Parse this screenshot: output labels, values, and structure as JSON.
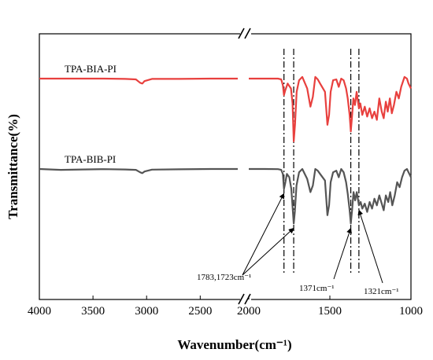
{
  "chart_data": {
    "type": "line",
    "xlabel": "Wavenumber(cm⁻¹)",
    "ylabel": "Transmittance(%)",
    "x_axis": {
      "reversed": true,
      "broken": true,
      "segments": [
        [
          4000,
          2150
        ],
        [
          2000,
          1000
        ]
      ]
    },
    "xticks": [
      {
        "value": 4000,
        "label": "4000"
      },
      {
        "value": 3500,
        "label": "3500"
      },
      {
        "value": 3000,
        "label": "3000"
      },
      {
        "value": 2500,
        "label": "2500"
      },
      {
        "value": 2000,
        "label": "2000"
      },
      {
        "value": 1500,
        "label": "1500"
      },
      {
        "value": 1000,
        "label": "1000"
      }
    ],
    "y_ticks_shown": false,
    "series": [
      {
        "name": "TPA-BIA-PI",
        "color": "#e8403e",
        "points": [
          [
            4000,
            100
          ],
          [
            3800,
            100
          ],
          [
            3600,
            100
          ],
          [
            3400,
            100
          ],
          [
            3200,
            99.8
          ],
          [
            3100,
            99.5
          ],
          [
            3060,
            97.5
          ],
          [
            3040,
            97
          ],
          [
            3020,
            98.5
          ],
          [
            2950,
            99.8
          ],
          [
            2700,
            99.8
          ],
          [
            2400,
            100
          ],
          [
            2150,
            100
          ],
          [
            2000,
            100
          ],
          [
            1900,
            100
          ],
          [
            1820,
            100
          ],
          [
            1800,
            99.5
          ],
          [
            1790,
            96
          ],
          [
            1783,
            90
          ],
          [
            1775,
            93
          ],
          [
            1760,
            97
          ],
          [
            1740,
            94
          ],
          [
            1730,
            85
          ],
          [
            1723,
            62
          ],
          [
            1715,
            72
          ],
          [
            1705,
            92
          ],
          [
            1690,
            99
          ],
          [
            1670,
            101
          ],
          [
            1640,
            94
          ],
          [
            1620,
            83
          ],
          [
            1605,
            89
          ],
          [
            1590,
            101
          ],
          [
            1575,
            99.5
          ],
          [
            1560,
            97
          ],
          [
            1530,
            92
          ],
          [
            1515,
            72
          ],
          [
            1505,
            78
          ],
          [
            1495,
            92
          ],
          [
            1480,
            99
          ],
          [
            1460,
            99.5
          ],
          [
            1445,
            95
          ],
          [
            1430,
            100
          ],
          [
            1415,
            99
          ],
          [
            1400,
            94
          ],
          [
            1390,
            88
          ],
          [
            1378,
            78
          ],
          [
            1371,
            68
          ],
          [
            1365,
            75
          ],
          [
            1355,
            88
          ],
          [
            1345,
            84
          ],
          [
            1335,
            92
          ],
          [
            1321,
            82
          ],
          [
            1312,
            85
          ],
          [
            1300,
            78
          ],
          [
            1285,
            83
          ],
          [
            1270,
            77
          ],
          [
            1255,
            82
          ],
          [
            1240,
            76
          ],
          [
            1225,
            80
          ],
          [
            1210,
            75
          ],
          [
            1195,
            88
          ],
          [
            1180,
            80
          ],
          [
            1168,
            76
          ],
          [
            1155,
            86
          ],
          [
            1143,
            80
          ],
          [
            1130,
            88
          ],
          [
            1118,
            79
          ],
          [
            1105,
            84
          ],
          [
            1090,
            92
          ],
          [
            1075,
            88
          ],
          [
            1060,
            95
          ],
          [
            1040,
            101
          ],
          [
            1025,
            100
          ],
          [
            1015,
            97
          ],
          [
            1005,
            95
          ],
          [
            1000,
            94
          ]
        ]
      },
      {
        "name": "TPA-BIB-PI",
        "color": "#555555",
        "points": [
          [
            4000,
            100
          ],
          [
            3800,
            99.5
          ],
          [
            3600,
            99.7
          ],
          [
            3400,
            99.9
          ],
          [
            3200,
            99.7
          ],
          [
            3100,
            99.5
          ],
          [
            3060,
            98
          ],
          [
            3040,
            97.5
          ],
          [
            3020,
            98.5
          ],
          [
            2950,
            99.6
          ],
          [
            2700,
            99.8
          ],
          [
            2400,
            100
          ],
          [
            2150,
            100
          ],
          [
            2000,
            100
          ],
          [
            1900,
            100
          ],
          [
            1820,
            99.9
          ],
          [
            1800,
            99.5
          ],
          [
            1790,
            97
          ],
          [
            1783,
            88
          ],
          [
            1776,
            91
          ],
          [
            1765,
            97
          ],
          [
            1750,
            95
          ],
          [
            1738,
            88
          ],
          [
            1723,
            67
          ],
          [
            1716,
            74
          ],
          [
            1706,
            90
          ],
          [
            1690,
            98
          ],
          [
            1670,
            100
          ],
          [
            1640,
            94
          ],
          [
            1620,
            86
          ],
          [
            1605,
            90
          ],
          [
            1590,
            100
          ],
          [
            1575,
            99
          ],
          [
            1560,
            97
          ],
          [
            1530,
            93
          ],
          [
            1515,
            72
          ],
          [
            1505,
            78
          ],
          [
            1495,
            92
          ],
          [
            1480,
            98
          ],
          [
            1460,
            99
          ],
          [
            1445,
            95
          ],
          [
            1430,
            100
          ],
          [
            1415,
            98
          ],
          [
            1400,
            92
          ],
          [
            1390,
            85
          ],
          [
            1378,
            75
          ],
          [
            1371,
            67
          ],
          [
            1363,
            75
          ],
          [
            1354,
            86
          ],
          [
            1344,
            81
          ],
          [
            1334,
            86
          ],
          [
            1321,
            78
          ],
          [
            1310,
            80
          ],
          [
            1300,
            76
          ],
          [
            1285,
            79
          ],
          [
            1270,
            74
          ],
          [
            1255,
            80
          ],
          [
            1240,
            76
          ],
          [
            1225,
            82
          ],
          [
            1210,
            78
          ],
          [
            1195,
            84
          ],
          [
            1180,
            79
          ],
          [
            1168,
            75
          ],
          [
            1155,
            84
          ],
          [
            1140,
            80
          ],
          [
            1128,
            86
          ],
          [
            1115,
            78
          ],
          [
            1100,
            84
          ],
          [
            1085,
            92
          ],
          [
            1070,
            89
          ],
          [
            1055,
            95
          ],
          [
            1040,
            99
          ],
          [
            1025,
            100
          ],
          [
            1015,
            98
          ],
          [
            1005,
            96
          ],
          [
            1000,
            95
          ]
        ]
      }
    ],
    "reference_lines": [
      1783,
      1723,
      1371,
      1321
    ],
    "annotations": [
      {
        "text": "1783,1723cm⁻¹",
        "targets": [
          1783,
          1723
        ]
      },
      {
        "text": "1371cm⁻¹",
        "targets": [
          1371
        ]
      },
      {
        "text": "1321cm⁻¹",
        "targets": [
          1321
        ]
      }
    ]
  }
}
